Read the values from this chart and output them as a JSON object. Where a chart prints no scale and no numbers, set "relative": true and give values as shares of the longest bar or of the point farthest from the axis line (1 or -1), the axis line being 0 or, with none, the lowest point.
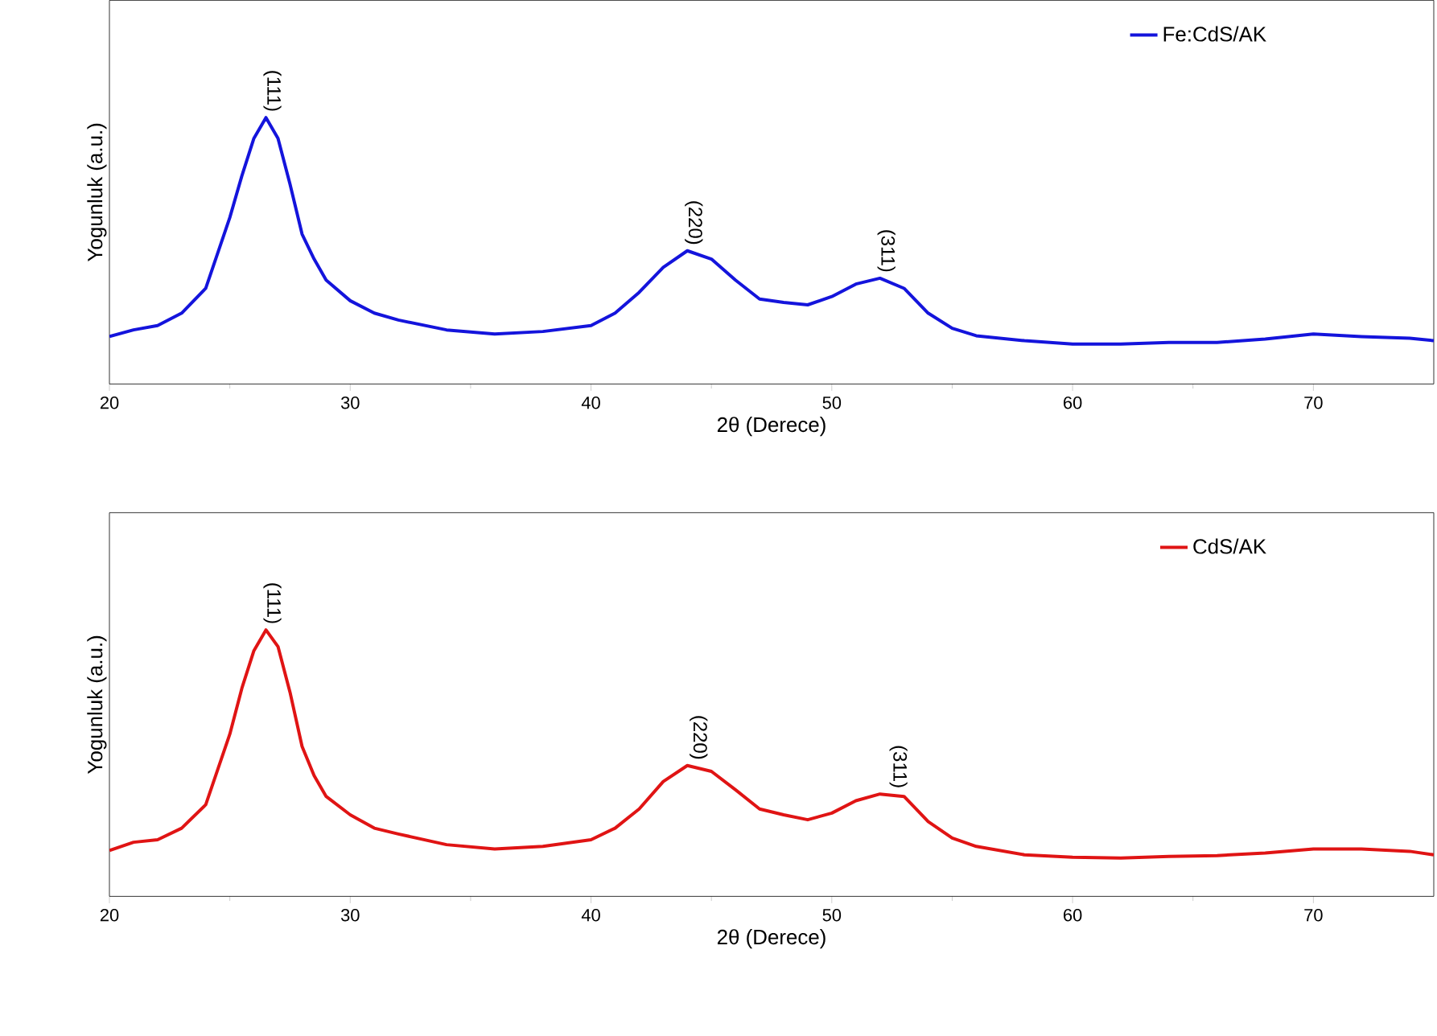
{
  "chart_data": [
    {
      "type": "line",
      "relative": true,
      "xlabel": "2θ (Derece)",
      "ylabel": "Yogunluk (a.u.)",
      "xlim": [
        20,
        75
      ],
      "xticks": [
        20,
        30,
        40,
        50,
        60,
        70
      ],
      "legend": "top right",
      "line_style": "solid",
      "x": [
        20,
        21,
        22,
        23,
        24,
        25,
        25.5,
        26,
        26.5,
        27,
        27.5,
        28,
        28.5,
        29,
        30,
        31,
        32,
        34,
        36,
        38,
        40,
        41,
        42,
        43,
        44,
        45,
        46,
        47,
        48,
        49,
        50,
        51,
        52,
        53,
        54,
        55,
        56,
        58,
        60,
        62,
        64,
        66,
        68,
        70,
        72,
        74,
        75
      ],
      "series": [
        {
          "name": "Fe:CdS/AK",
          "color": "#1414dc",
          "values": [
            0.178,
            0.203,
            0.219,
            0.266,
            0.359,
            0.625,
            0.781,
            0.922,
            1.0,
            0.922,
            0.75,
            0.5625,
            0.469,
            0.39,
            0.3125,
            0.266,
            0.24,
            0.203,
            0.1875,
            0.197,
            0.219,
            0.266,
            0.344,
            0.4375,
            0.5,
            0.469,
            0.39,
            0.319,
            0.306,
            0.297,
            0.328,
            0.375,
            0.397,
            0.359,
            0.266,
            0.209,
            0.181,
            0.1625,
            0.15,
            0.15,
            0.156,
            0.156,
            0.169,
            0.1875,
            0.178,
            0.172,
            0.1625
          ]
        }
      ],
      "annotations": [
        {
          "text": "(111)",
          "x": 26.5,
          "y": 1.0
        },
        {
          "text": "(220)",
          "x": 44,
          "y": 0.5
        },
        {
          "text": "(311)",
          "x": 52,
          "y": 0.397
        }
      ]
    },
    {
      "type": "line",
      "relative": true,
      "xlabel": "2θ (Derece)",
      "ylabel": "Yogunluk (a.u.)",
      "xlim": [
        20,
        75
      ],
      "xticks": [
        20,
        30,
        40,
        50,
        60,
        70
      ],
      "legend": "top right",
      "line_style": "solid",
      "x": [
        20,
        21,
        22,
        23,
        24,
        25,
        25.5,
        26,
        26.5,
        27,
        27.5,
        28,
        28.5,
        29,
        30,
        31,
        32,
        34,
        36,
        38,
        40,
        41,
        42,
        43,
        44,
        45,
        46,
        47,
        48,
        49,
        50,
        51,
        52,
        53,
        54,
        55,
        56,
        58,
        60,
        62,
        64,
        66,
        68,
        70,
        72,
        74,
        75
      ],
      "series": [
        {
          "name": "CdS/AK",
          "color": "#e01414",
          "values": [
            0.172,
            0.203,
            0.2125,
            0.256,
            0.344,
            0.609,
            0.781,
            0.922,
            1.0,
            0.9375,
            0.766,
            0.5625,
            0.453,
            0.375,
            0.306,
            0.256,
            0.234,
            0.194,
            0.178,
            0.1875,
            0.2125,
            0.256,
            0.328,
            0.431,
            0.491,
            0.469,
            0.4,
            0.328,
            0.306,
            0.2875,
            0.3125,
            0.359,
            0.384,
            0.375,
            0.281,
            0.219,
            0.1875,
            0.156,
            0.147,
            0.144,
            0.15,
            0.153,
            0.1625,
            0.178,
            0.178,
            0.169,
            0.156
          ]
        }
      ],
      "annotations": [
        {
          "text": "(111)",
          "x": 26.5,
          "y": 1.0
        },
        {
          "text": "(220)",
          "x": 44.2,
          "y": 0.491
        },
        {
          "text": "(311)",
          "x": 52.5,
          "y": 0.384
        }
      ]
    }
  ]
}
